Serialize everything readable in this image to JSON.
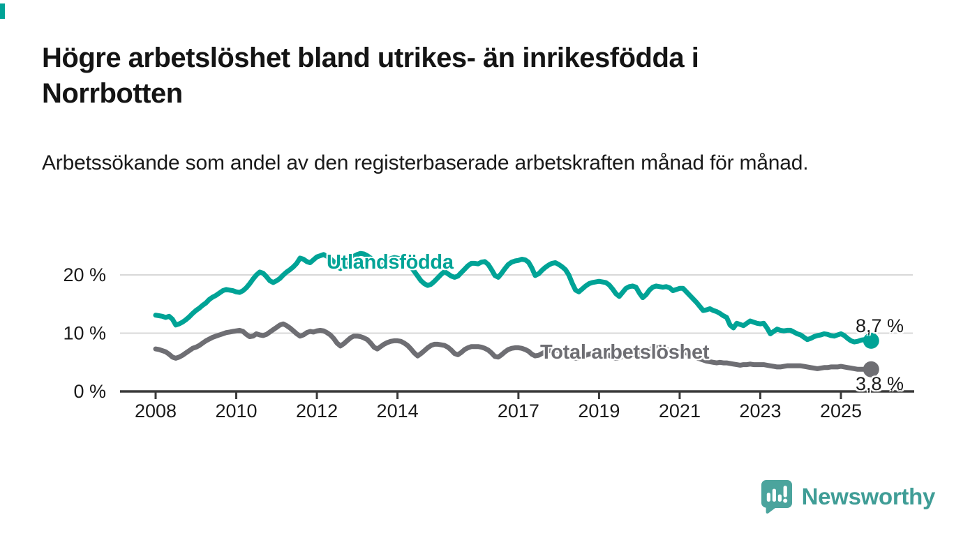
{
  "accent_color": "#00a396",
  "header": {
    "title": "Högre arbetslöshet bland utrikes- än inrikesfödda i Norrbotten",
    "subtitle": "Arbetssökande som andel av den registerbaserade arbetskraften månad för månad."
  },
  "chart_data": {
    "type": "line",
    "title": "Högre arbetslöshet bland utrikes- än inrikesfödda i Norrbotten",
    "subtitle": "Arbetssökande som andel av den registerbaserade arbetskraften månad för månad.",
    "frequency": "monthly",
    "x_start": "2008-01",
    "x_end": "2025-10",
    "x_tick_years": [
      2008,
      2010,
      2012,
      2014,
      2017,
      2019,
      2021,
      2023,
      2025
    ],
    "y_ticks": [
      {
        "value": 0,
        "label": "0 %"
      },
      {
        "value": 10,
        "label": "10 %"
      },
      {
        "value": 20,
        "label": "20 %"
      }
    ],
    "ylim": [
      0,
      24.5
    ],
    "grid": "horizontal",
    "axis_color": "#3a3a3a",
    "gridline_color": "#d8d8d8",
    "series": [
      {
        "name": "Utlandsfödda",
        "color": "#00a396",
        "end_label": "8,7 %",
        "end_value": 8.7,
        "values": [
          13.1,
          13.0,
          12.9,
          12.7,
          12.9,
          12.4,
          11.4,
          11.6,
          11.9,
          12.3,
          12.8,
          13.4,
          13.9,
          14.3,
          14.8,
          15.2,
          15.8,
          16.2,
          16.5,
          16.9,
          17.3,
          17.5,
          17.4,
          17.3,
          17.1,
          17.0,
          17.3,
          17.8,
          18.5,
          19.3,
          20.0,
          20.5,
          20.3,
          19.7,
          19.0,
          18.7,
          19.0,
          19.4,
          20.0,
          20.5,
          20.9,
          21.4,
          22.0,
          22.9,
          22.7,
          22.3,
          22.1,
          22.6,
          23.1,
          23.3,
          23.5,
          23.2,
          22.8,
          22.3,
          21.4,
          21.1,
          21.7,
          22.3,
          22.8,
          23.2,
          23.5,
          23.7,
          23.6,
          23.3,
          22.9,
          22.4,
          21.8,
          21.5,
          21.9,
          22.4,
          22.8,
          23.0,
          22.9,
          22.7,
          22.4,
          22.0,
          21.4,
          20.6,
          19.8,
          19.0,
          18.5,
          18.2,
          18.4,
          18.9,
          19.5,
          20.1,
          20.6,
          20.2,
          19.8,
          19.6,
          19.8,
          20.4,
          21.0,
          21.6,
          22.0,
          22.0,
          21.9,
          22.2,
          22.3,
          21.8,
          20.9,
          19.9,
          19.6,
          20.3,
          21.1,
          21.8,
          22.2,
          22.4,
          22.5,
          22.7,
          22.6,
          22.2,
          21.2,
          19.9,
          20.2,
          20.8,
          21.3,
          21.7,
          22.0,
          22.1,
          21.8,
          21.4,
          20.9,
          20.0,
          18.6,
          17.4,
          17.1,
          17.6,
          18.1,
          18.5,
          18.7,
          18.8,
          18.9,
          18.8,
          18.7,
          18.3,
          17.6,
          16.8,
          16.3,
          17.0,
          17.7,
          18.0,
          18.1,
          17.9,
          16.9,
          16.1,
          16.6,
          17.4,
          17.9,
          18.1,
          18.0,
          17.9,
          18.0,
          17.8,
          17.3,
          17.5,
          17.7,
          17.7,
          17.1,
          16.5,
          15.9,
          15.3,
          14.6,
          13.9,
          14.0,
          14.2,
          13.9,
          13.7,
          13.4,
          13.0,
          12.7,
          11.4,
          10.9,
          11.7,
          11.5,
          11.3,
          11.7,
          12.1,
          11.9,
          11.7,
          11.6,
          11.7,
          10.9,
          9.9,
          10.3,
          10.7,
          10.5,
          10.4,
          10.5,
          10.5,
          10.2,
          9.9,
          9.7,
          9.3,
          8.9,
          9.1,
          9.4,
          9.6,
          9.7,
          9.9,
          9.8,
          9.6,
          9.5,
          9.7,
          9.9,
          9.6,
          9.1,
          8.7,
          8.5,
          8.6,
          8.8,
          8.9,
          8.8,
          8.7
        ]
      },
      {
        "name": "Total arbetslöshet",
        "color": "#6e6e73",
        "end_label": "3,8 %",
        "end_value": 3.8,
        "values": [
          7.3,
          7.2,
          7.0,
          6.8,
          6.4,
          5.9,
          5.7,
          5.9,
          6.2,
          6.6,
          7.0,
          7.4,
          7.6,
          7.9,
          8.3,
          8.7,
          9.0,
          9.3,
          9.5,
          9.7,
          9.9,
          10.1,
          10.2,
          10.3,
          10.4,
          10.5,
          10.3,
          9.8,
          9.4,
          9.5,
          9.9,
          9.7,
          9.6,
          9.8,
          10.2,
          10.6,
          11.0,
          11.4,
          11.6,
          11.3,
          10.9,
          10.4,
          9.9,
          9.5,
          9.7,
          10.1,
          10.3,
          10.2,
          10.4,
          10.5,
          10.4,
          10.1,
          9.7,
          9.1,
          8.3,
          7.8,
          8.2,
          8.7,
          9.2,
          9.5,
          9.5,
          9.4,
          9.2,
          8.9,
          8.3,
          7.6,
          7.3,
          7.7,
          8.1,
          8.4,
          8.6,
          8.7,
          8.7,
          8.6,
          8.3,
          7.9,
          7.3,
          6.6,
          6.1,
          6.5,
          7.0,
          7.5,
          7.9,
          8.1,
          8.1,
          8.0,
          7.9,
          7.6,
          7.1,
          6.5,
          6.3,
          6.7,
          7.2,
          7.5,
          7.7,
          7.7,
          7.7,
          7.6,
          7.4,
          7.1,
          6.6,
          6.0,
          5.9,
          6.3,
          6.8,
          7.2,
          7.4,
          7.5,
          7.5,
          7.4,
          7.2,
          6.9,
          6.4,
          6.1,
          6.2,
          6.5,
          6.8,
          7.0,
          7.1,
          7.1,
          7.0,
          6.9,
          6.7,
          6.4,
          6.0,
          5.7,
          5.8,
          6.0,
          6.2,
          6.4,
          6.5,
          6.6,
          6.6,
          6.5,
          6.4,
          6.2,
          5.9,
          5.7,
          5.8,
          6.0,
          6.1,
          6.3,
          6.4,
          6.5,
          6.6,
          6.6,
          6.8,
          7.2,
          7.4,
          7.5,
          7.4,
          7.3,
          7.2,
          7.0,
          6.9,
          6.9,
          6.9,
          6.8,
          6.6,
          6.4,
          6.1,
          5.8,
          5.6,
          5.4,
          5.2,
          5.1,
          5.0,
          4.9,
          5.0,
          4.9,
          4.9,
          4.8,
          4.7,
          4.6,
          4.5,
          4.6,
          4.6,
          4.7,
          4.6,
          4.6,
          4.6,
          4.6,
          4.5,
          4.4,
          4.3,
          4.2,
          4.2,
          4.3,
          4.4,
          4.4,
          4.4,
          4.4,
          4.4,
          4.3,
          4.2,
          4.1,
          4.0,
          3.9,
          4.0,
          4.1,
          4.1,
          4.2,
          4.2,
          4.2,
          4.3,
          4.2,
          4.1,
          4.0,
          3.9,
          3.8,
          3.8,
          3.8,
          3.8,
          3.8
        ]
      }
    ]
  },
  "footer": {
    "brand": "Newsworthy",
    "brand_color": "#3f9d96",
    "logo_icon": "bar-chart-speech-bubble-icon"
  }
}
